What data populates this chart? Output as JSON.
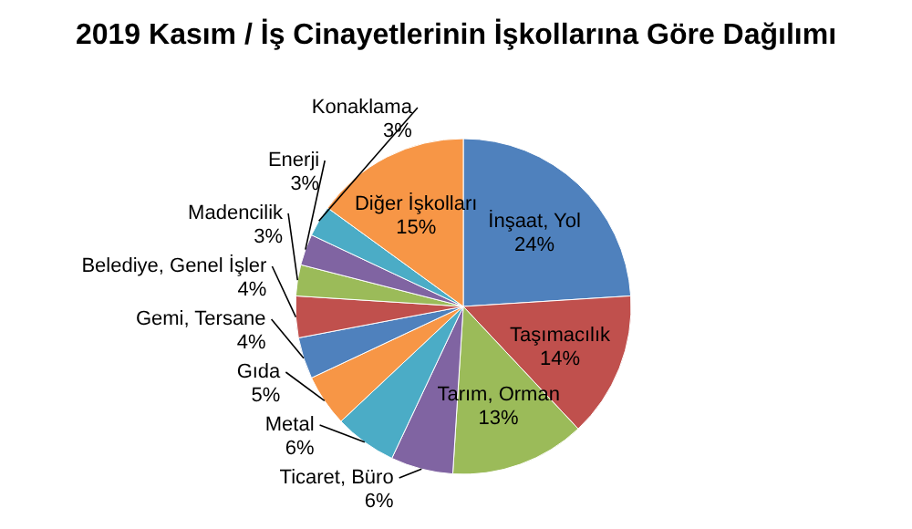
{
  "chart_data": {
    "type": "pie",
    "title": "2019 Kasım / İş Cinayetlerinin İşkollarına Göre Dağılımı",
    "categories": [
      "İnşaat, Yol",
      "Taşımacılık",
      "Tarım, Orman",
      "Ticaret, Büro",
      "Metal",
      "Gıda",
      "Gemi, Tersane",
      "Belediye, Genel İşler",
      "Madencilik",
      "Enerji",
      "Konaklama",
      "Diğer İşkolları"
    ],
    "values": [
      24,
      14,
      13,
      6,
      6,
      5,
      4,
      4,
      3,
      3,
      3,
      15
    ],
    "value_labels": [
      "24%",
      "14%",
      "13%",
      "6%",
      "6%",
      "5%",
      "4%",
      "4%",
      "3%",
      "3%",
      "3%",
      "15%"
    ],
    "colors": [
      "#4f81bd",
      "#c0504d",
      "#9bbb59",
      "#8064a2",
      "#4bacc6",
      "#f79646",
      "#4f81bd",
      "#c0504d",
      "#9bbb59",
      "#8064a2",
      "#4bacc6",
      "#f79646"
    ]
  }
}
